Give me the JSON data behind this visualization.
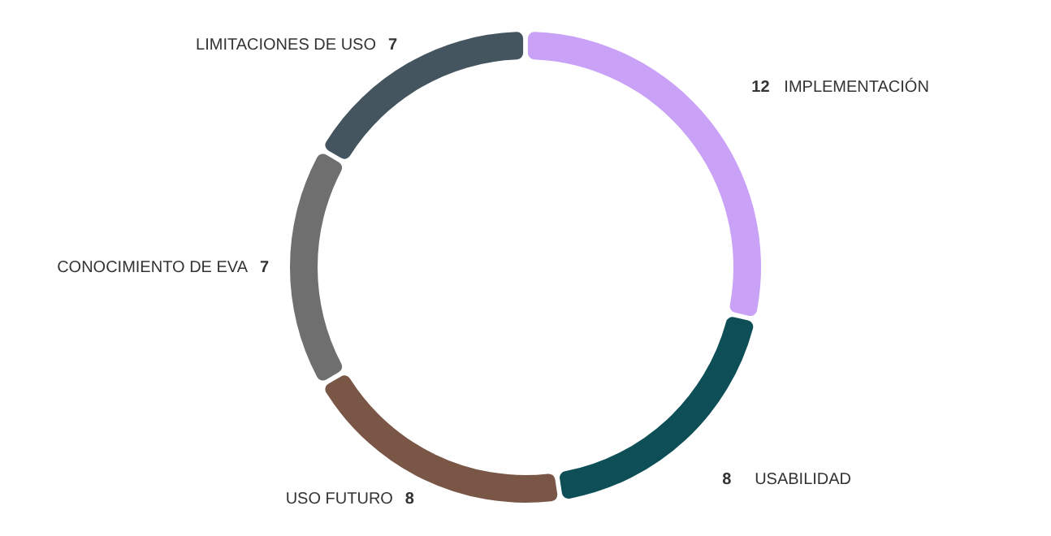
{
  "chart_data": {
    "type": "donut",
    "categories": [
      "IMPLEMENTACIÓN",
      "USABILIDAD",
      "USO FUTURO",
      "CONOCIMIENTO DE EVA",
      "LIMITACIONES DE USO"
    ],
    "values": [
      12,
      8,
      8,
      7,
      7
    ],
    "colors": [
      "#c9a2f7",
      "#0e4f57",
      "#7a5646",
      "#6f6f6f",
      "#44555f"
    ],
    "data_labels": true
  }
}
